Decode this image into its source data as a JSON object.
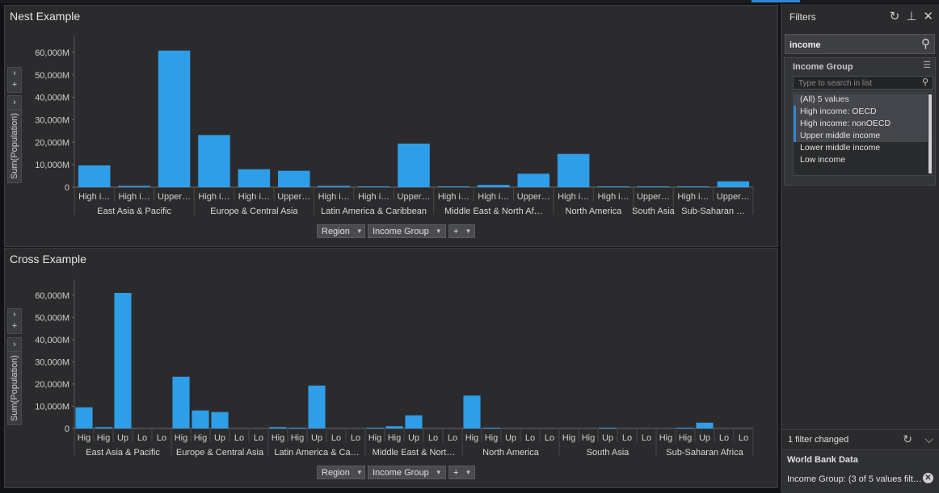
{
  "axis_buttons": {
    "region": "Region",
    "income": "Income Group",
    "plus": "+"
  },
  "y_axis_label": "Sum(Population)",
  "side": {
    "arrow": "›",
    "plus": "+"
  },
  "nest": {
    "title": "Nest Example",
    "chart_data": {
      "type": "bar",
      "ylabel": "Sum(Population)",
      "ylim": [
        0,
        65000
      ],
      "yticks": [
        "0",
        "10,000M",
        "20,000M",
        "30,000M",
        "40,000M",
        "50,000M",
        "60,000M"
      ],
      "groups": [
        {
          "region": "East Asia & Pacific",
          "labels": [
            "High i…",
            "High i…",
            "Upper…"
          ],
          "values": [
            9700,
            600,
            60800
          ]
        },
        {
          "region": "Europe & Central Asia",
          "labels": [
            "High i…",
            "High i…",
            "Upper…"
          ],
          "values": [
            23200,
            8000,
            7300
          ]
        },
        {
          "region": "Latin America & Caribbean",
          "labels": [
            "High i…",
            "High i…",
            "Upper…"
          ],
          "values": [
            600,
            300,
            19400
          ]
        },
        {
          "region": "Middle East & North Af…",
          "labels": [
            "High i…",
            "High i…",
            "Upper…"
          ],
          "values": [
            300,
            1000,
            6000
          ]
        },
        {
          "region": "North America",
          "labels": [
            "High i…",
            "High i…"
          ],
          "values": [
            14800,
            200
          ]
        },
        {
          "region": "South Asia",
          "labels": [
            "Upper…"
          ],
          "values": [
            300
          ]
        },
        {
          "region": "Sub-Saharan …",
          "labels": [
            "High i…",
            "Upper…"
          ],
          "values": [
            200,
            2600
          ]
        }
      ]
    }
  },
  "cross": {
    "title": "Cross Example",
    "chart_data": {
      "type": "bar",
      "ylabel": "Sum(Population)",
      "ylim": [
        0,
        65000
      ],
      "yticks": [
        "0",
        "10,000M",
        "20,000M",
        "30,000M",
        "40,000M",
        "50,000M",
        "60,000M"
      ],
      "groups": [
        {
          "region": "East Asia & Pacific",
          "labels": [
            "Hig",
            "Hig",
            "Up",
            "Lo",
            "Lo"
          ],
          "values": [
            9500,
            600,
            61000,
            0,
            0
          ]
        },
        {
          "region": "Europe & Central Asia",
          "labels": [
            "Hig",
            "Hig",
            "Up",
            "Lo",
            "Lo"
          ],
          "values": [
            23300,
            8100,
            7400,
            0,
            0
          ]
        },
        {
          "region": "Latin America & Ca…",
          "labels": [
            "Hig",
            "Hig",
            "Up",
            "Lo",
            "Lo"
          ],
          "values": [
            600,
            300,
            19300,
            0,
            0
          ]
        },
        {
          "region": "Middle East & Nort…",
          "labels": [
            "Hig",
            "Hig",
            "Up",
            "Lo",
            "Lo"
          ],
          "values": [
            300,
            1000,
            5900,
            0,
            0
          ]
        },
        {
          "region": "North America",
          "labels": [
            "Hig",
            "Hig",
            "Up",
            "Lo",
            "Lo"
          ],
          "values": [
            14800,
            200,
            0,
            0,
            0
          ]
        },
        {
          "region": "South Asia",
          "labels": [
            "Hig",
            "Hig",
            "Up",
            "Lo",
            "Lo"
          ],
          "values": [
            0,
            0,
            300,
            0,
            0
          ]
        },
        {
          "region": "Sub-Saharan Africa",
          "labels": [
            "Hig",
            "Hig",
            "Up",
            "Lo",
            "Lo"
          ],
          "values": [
            0,
            200,
            2600,
            0,
            0
          ]
        }
      ]
    }
  },
  "filters": {
    "title": "Filters",
    "search_value": "income",
    "group_title": "Income Group",
    "list_placeholder": "Type to search in list",
    "items": [
      {
        "label": "(All) 5 values",
        "selected": true,
        "marked": false
      },
      {
        "label": "High income: OECD",
        "selected": true,
        "marked": true
      },
      {
        "label": "High income: nonOECD",
        "selected": true,
        "marked": true
      },
      {
        "label": "Upper middle income",
        "selected": true,
        "marked": true
      },
      {
        "label": "Lower middle income",
        "selected": false,
        "marked": false
      },
      {
        "label": "Low income",
        "selected": false,
        "marked": false
      }
    ],
    "changed_text": "1 filter changed",
    "source_title": "World Bank Data",
    "source_filter": "Income Group: (3 of 5 values filt…"
  },
  "colors": {
    "bar": "#2f9ee8",
    "panel": "#2b2b2d",
    "accent": "#2f86d6"
  }
}
